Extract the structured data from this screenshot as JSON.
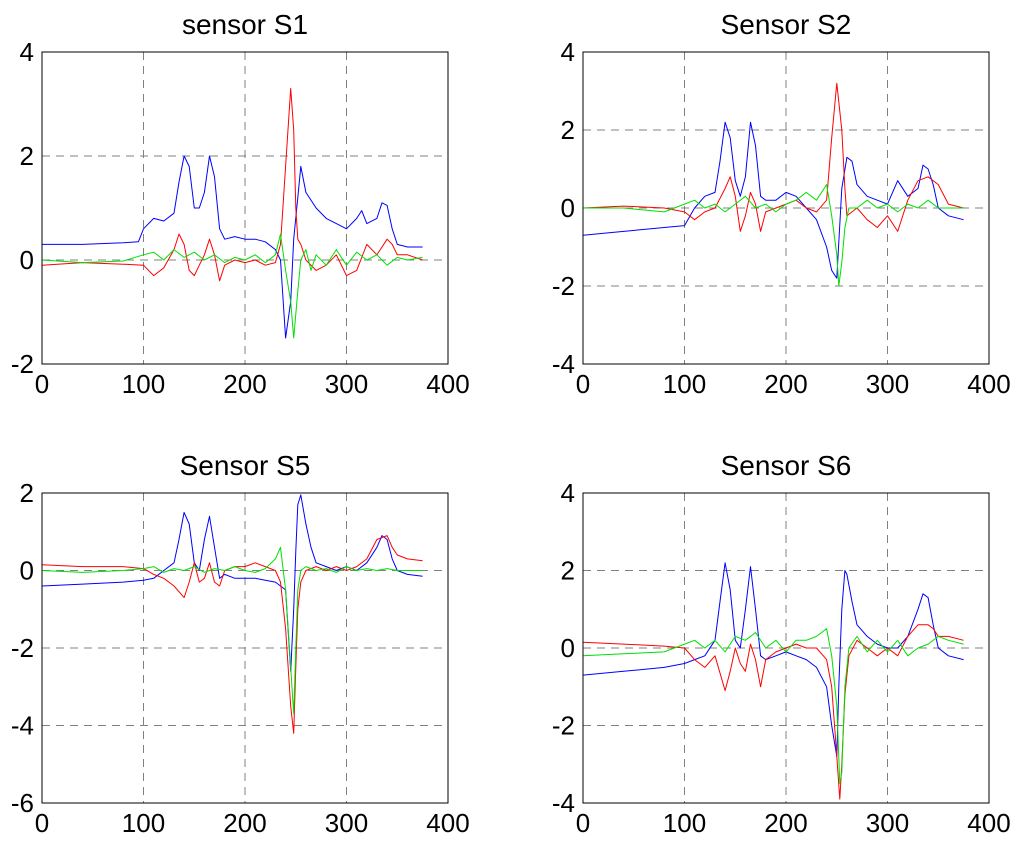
{
  "colors": {
    "blue": "#0000ff",
    "red": "#ff0000",
    "green": "#00e000",
    "grid": "#808080"
  },
  "chart_data": [
    {
      "type": "line",
      "title": "sensor S1",
      "xlim": [
        0,
        400
      ],
      "ylim": [
        -2,
        4
      ],
      "xticks": [
        0,
        100,
        200,
        300,
        400
      ],
      "yticks": [
        -2,
        0,
        2,
        4
      ],
      "grid": true,
      "series": [
        {
          "color": "#0000ff",
          "x": [
            0,
            40,
            80,
            95,
            100,
            110,
            120,
            130,
            135,
            140,
            145,
            150,
            155,
            160,
            165,
            170,
            175,
            180,
            190,
            200,
            210,
            220,
            230,
            235,
            240,
            245,
            248,
            252,
            255,
            260,
            270,
            280,
            290,
            300,
            310,
            315,
            320,
            330,
            335,
            340,
            345,
            350,
            360,
            375
          ],
          "y": [
            0.3,
            0.3,
            0.33,
            0.35,
            0.6,
            0.8,
            0.75,
            0.9,
            1.5,
            2.0,
            1.8,
            1.0,
            1.0,
            1.3,
            2.0,
            1.6,
            0.6,
            0.4,
            0.45,
            0.4,
            0.4,
            0.35,
            0.2,
            0.0,
            -1.5,
            -0.8,
            0.4,
            1.2,
            1.8,
            1.3,
            1.0,
            0.8,
            0.7,
            0.6,
            0.8,
            0.95,
            0.7,
            0.8,
            1.1,
            1.05,
            0.6,
            0.3,
            0.25,
            0.25
          ]
        },
        {
          "color": "#ff0000",
          "x": [
            0,
            40,
            80,
            100,
            110,
            120,
            130,
            135,
            140,
            145,
            150,
            155,
            160,
            165,
            170,
            175,
            180,
            190,
            200,
            210,
            220,
            230,
            235,
            240,
            245,
            248,
            250,
            252,
            255,
            260,
            270,
            280,
            290,
            300,
            310,
            320,
            330,
            340,
            345,
            350,
            360,
            375
          ],
          "y": [
            -0.1,
            -0.05,
            -0.08,
            -0.1,
            -0.3,
            -0.15,
            0.2,
            0.5,
            0.3,
            -0.2,
            -0.3,
            -0.1,
            0.1,
            0.4,
            0.1,
            -0.4,
            -0.1,
            0.0,
            -0.05,
            0.0,
            -0.1,
            -0.05,
            0.3,
            1.8,
            3.3,
            2.5,
            1.0,
            0.4,
            0.3,
            0.0,
            -0.2,
            -0.1,
            0.1,
            -0.3,
            -0.2,
            0.3,
            0.1,
            0.4,
            0.3,
            0.1,
            0.1,
            0.0
          ]
        },
        {
          "color": "#00e000",
          "x": [
            0,
            40,
            80,
            100,
            110,
            120,
            130,
            140,
            150,
            160,
            170,
            180,
            190,
            200,
            210,
            220,
            230,
            235,
            240,
            245,
            248,
            252,
            255,
            260,
            265,
            270,
            280,
            290,
            300,
            310,
            320,
            330,
            340,
            350,
            360,
            375
          ],
          "y": [
            0.0,
            -0.05,
            -0.02,
            0.1,
            0.15,
            0.0,
            0.2,
            0.05,
            0.15,
            0.0,
            0.1,
            -0.05,
            0.05,
            0.0,
            0.1,
            -0.05,
            0.1,
            0.5,
            -0.2,
            -0.8,
            -1.5,
            -0.6,
            0.0,
            0.2,
            -0.2,
            0.1,
            -0.1,
            0.2,
            -0.1,
            0.15,
            0.0,
            0.1,
            -0.1,
            0.05,
            0.0,
            0.05
          ]
        }
      ]
    },
    {
      "type": "line",
      "title": "Sensor S2",
      "xlim": [
        0,
        400
      ],
      "ylim": [
        -4,
        4
      ],
      "xticks": [
        0,
        100,
        200,
        300,
        400
      ],
      "yticks": [
        -4,
        -2,
        0,
        2,
        4
      ],
      "grid": true,
      "series": [
        {
          "color": "#0000ff",
          "x": [
            0,
            40,
            80,
            100,
            110,
            120,
            130,
            135,
            140,
            145,
            150,
            155,
            160,
            165,
            170,
            175,
            180,
            190,
            200,
            210,
            220,
            230,
            240,
            245,
            250,
            255,
            260,
            265,
            270,
            280,
            290,
            300,
            310,
            320,
            330,
            335,
            340,
            345,
            350,
            360,
            375
          ],
          "y": [
            -0.7,
            -0.6,
            -0.5,
            -0.45,
            0.0,
            0.3,
            0.4,
            1.2,
            2.2,
            1.8,
            0.7,
            0.3,
            0.8,
            2.2,
            1.6,
            0.3,
            0.2,
            0.2,
            0.4,
            0.3,
            0.0,
            -0.3,
            -1.0,
            -1.6,
            -1.8,
            0.5,
            1.3,
            1.2,
            0.6,
            0.3,
            0.2,
            0.1,
            0.7,
            0.3,
            0.5,
            1.1,
            1.0,
            0.6,
            0.0,
            -0.2,
            -0.3
          ]
        },
        {
          "color": "#ff0000",
          "x": [
            0,
            40,
            80,
            100,
            110,
            120,
            130,
            140,
            145,
            150,
            155,
            160,
            165,
            170,
            175,
            180,
            190,
            200,
            210,
            220,
            230,
            240,
            245,
            250,
            255,
            258,
            260,
            265,
            270,
            280,
            290,
            300,
            310,
            320,
            330,
            340,
            350,
            360,
            375
          ],
          "y": [
            0.0,
            0.05,
            0.0,
            -0.1,
            -0.3,
            -0.1,
            0.0,
            0.5,
            0.8,
            0.3,
            -0.6,
            -0.2,
            0.4,
            0.1,
            -0.6,
            -0.1,
            0.0,
            0.1,
            0.2,
            0.0,
            -0.1,
            0.2,
            1.8,
            3.2,
            2.0,
            0.5,
            -0.2,
            -0.1,
            0.0,
            -0.3,
            -0.5,
            -0.2,
            -0.6,
            0.2,
            0.7,
            0.8,
            0.6,
            0.1,
            0.0
          ]
        },
        {
          "color": "#00e000",
          "x": [
            0,
            40,
            80,
            100,
            110,
            120,
            130,
            140,
            150,
            160,
            170,
            180,
            190,
            200,
            210,
            220,
            230,
            240,
            245,
            250,
            252,
            255,
            258,
            262,
            270,
            280,
            290,
            300,
            310,
            320,
            330,
            340,
            350,
            360,
            375
          ],
          "y": [
            0.0,
            0.0,
            -0.1,
            0.1,
            0.2,
            0.0,
            0.1,
            -0.1,
            0.1,
            0.3,
            0.0,
            0.1,
            -0.1,
            0.1,
            0.2,
            0.4,
            0.2,
            0.6,
            -0.2,
            -1.2,
            -2.0,
            -1.4,
            -0.5,
            0.0,
            0.0,
            0.2,
            0.0,
            0.1,
            -0.1,
            0.1,
            0.0,
            0.2,
            0.0,
            0.0,
            0.0
          ]
        }
      ]
    },
    {
      "type": "line",
      "title": "Sensor S5",
      "xlim": [
        0,
        400
      ],
      "ylim": [
        -6,
        2
      ],
      "xticks": [
        0,
        100,
        200,
        300,
        400
      ],
      "yticks": [
        -6,
        -4,
        -2,
        0,
        2
      ],
      "grid": true,
      "series": [
        {
          "color": "#0000ff",
          "x": [
            0,
            40,
            80,
            100,
            110,
            120,
            130,
            135,
            140,
            145,
            150,
            155,
            160,
            165,
            170,
            175,
            180,
            190,
            200,
            210,
            220,
            230,
            240,
            245,
            248,
            250,
            252,
            255,
            260,
            265,
            270,
            280,
            290,
            300,
            310,
            320,
            330,
            335,
            340,
            345,
            350,
            360,
            375
          ],
          "y": [
            -0.4,
            -0.35,
            -0.3,
            -0.25,
            -0.2,
            0.0,
            0.2,
            0.8,
            1.5,
            1.2,
            0.2,
            0.0,
            0.8,
            1.4,
            0.6,
            -0.2,
            -0.1,
            -0.2,
            -0.2,
            -0.2,
            -0.25,
            -0.3,
            -0.5,
            -2.6,
            -1.0,
            0.5,
            1.7,
            1.95,
            1.2,
            0.6,
            0.2,
            0.1,
            0.0,
            0.1,
            0.0,
            0.2,
            0.6,
            0.9,
            0.8,
            0.3,
            0.0,
            -0.1,
            -0.15
          ]
        },
        {
          "color": "#ff0000",
          "x": [
            0,
            40,
            80,
            100,
            110,
            120,
            130,
            140,
            145,
            150,
            155,
            160,
            165,
            170,
            175,
            180,
            190,
            200,
            210,
            220,
            230,
            235,
            240,
            245,
            248,
            250,
            252,
            255,
            260,
            270,
            280,
            290,
            300,
            310,
            320,
            330,
            340,
            345,
            350,
            360,
            375
          ],
          "y": [
            0.15,
            0.1,
            0.1,
            0.05,
            -0.1,
            -0.2,
            -0.4,
            -0.7,
            -0.3,
            0.2,
            -0.3,
            -0.2,
            0.2,
            -0.3,
            -0.4,
            0.0,
            0.1,
            0.1,
            0.2,
            0.1,
            0.0,
            -0.3,
            -1.5,
            -3.5,
            -4.2,
            -2.5,
            -1.0,
            -0.3,
            0.0,
            0.1,
            0.0,
            0.1,
            0.0,
            0.1,
            0.3,
            0.8,
            0.9,
            0.6,
            0.4,
            0.3,
            0.25
          ]
        },
        {
          "color": "#00e000",
          "x": [
            0,
            40,
            80,
            100,
            110,
            120,
            130,
            140,
            150,
            160,
            170,
            180,
            190,
            200,
            210,
            220,
            230,
            235,
            240,
            245,
            248,
            250,
            252,
            255,
            260,
            270,
            280,
            290,
            300,
            310,
            320,
            330,
            340,
            350,
            360,
            375
          ],
          "y": [
            0.0,
            -0.05,
            0.0,
            0.05,
            0.1,
            -0.05,
            0.05,
            0.0,
            0.1,
            -0.05,
            0.05,
            0.0,
            0.1,
            0.0,
            -0.05,
            0.05,
            0.3,
            0.6,
            -0.5,
            -2.5,
            -3.7,
            -2.0,
            -0.5,
            0.0,
            0.1,
            0.0,
            0.05,
            -0.05,
            0.1,
            0.0,
            0.05,
            0.0,
            0.05,
            0.0,
            0.0,
            0.0
          ]
        }
      ]
    },
    {
      "type": "line",
      "title": "Sensor S6",
      "xlim": [
        0,
        400
      ],
      "ylim": [
        -4,
        4
      ],
      "xticks": [
        0,
        100,
        200,
        300,
        400
      ],
      "yticks": [
        -4,
        -2,
        0,
        2,
        4
      ],
      "grid": true,
      "series": [
        {
          "color": "#0000ff",
          "x": [
            0,
            40,
            80,
            100,
            110,
            120,
            130,
            135,
            140,
            145,
            150,
            155,
            160,
            165,
            170,
            175,
            180,
            190,
            200,
            210,
            220,
            230,
            240,
            245,
            250,
            252,
            255,
            258,
            260,
            265,
            270,
            280,
            290,
            300,
            310,
            320,
            330,
            335,
            340,
            345,
            350,
            360,
            375
          ],
          "y": [
            -0.7,
            -0.6,
            -0.5,
            -0.4,
            -0.3,
            -0.2,
            0.2,
            1.2,
            2.2,
            1.5,
            0.2,
            0.0,
            1.0,
            2.1,
            1.0,
            -0.2,
            -0.3,
            -0.2,
            -0.1,
            -0.2,
            -0.3,
            -0.5,
            -1.0,
            -2.0,
            -2.8,
            -1.0,
            1.0,
            2.0,
            1.9,
            1.2,
            0.6,
            0.3,
            0.1,
            0.0,
            0.0,
            0.3,
            1.0,
            1.4,
            1.3,
            0.6,
            0.0,
            -0.2,
            -0.3
          ]
        },
        {
          "color": "#ff0000",
          "x": [
            0,
            40,
            80,
            100,
            110,
            120,
            130,
            140,
            145,
            150,
            155,
            160,
            165,
            170,
            175,
            180,
            190,
            200,
            210,
            220,
            230,
            240,
            245,
            250,
            253,
            255,
            258,
            262,
            270,
            280,
            290,
            300,
            310,
            320,
            330,
            340,
            345,
            350,
            360,
            375
          ],
          "y": [
            0.15,
            0.1,
            0.05,
            0.0,
            -0.3,
            -0.5,
            -0.2,
            -1.1,
            -0.6,
            0.0,
            -0.4,
            -0.6,
            0.1,
            -0.3,
            -1.0,
            -0.3,
            -0.1,
            0.0,
            0.1,
            0.0,
            0.0,
            -0.3,
            -1.0,
            -2.8,
            -3.9,
            -3.0,
            -1.2,
            -0.2,
            0.2,
            0.0,
            -0.2,
            0.0,
            -0.2,
            0.3,
            0.6,
            0.6,
            0.5,
            0.3,
            0.3,
            0.2
          ]
        },
        {
          "color": "#00e000",
          "x": [
            0,
            40,
            80,
            100,
            110,
            120,
            130,
            140,
            150,
            160,
            170,
            180,
            190,
            200,
            210,
            220,
            230,
            240,
            245,
            250,
            253,
            255,
            258,
            262,
            270,
            280,
            290,
            300,
            310,
            320,
            330,
            340,
            350,
            360,
            375
          ],
          "y": [
            -0.2,
            -0.15,
            -0.1,
            0.1,
            0.2,
            0.0,
            0.2,
            -0.1,
            0.3,
            0.2,
            0.4,
            0.0,
            0.2,
            -0.1,
            0.2,
            0.2,
            0.3,
            0.5,
            -0.2,
            -1.5,
            -3.5,
            -3.2,
            -1.0,
            0.0,
            0.3,
            -0.1,
            0.2,
            -0.1,
            0.2,
            -0.2,
            0.0,
            0.1,
            0.3,
            0.2,
            0.1
          ]
        }
      ]
    }
  ]
}
